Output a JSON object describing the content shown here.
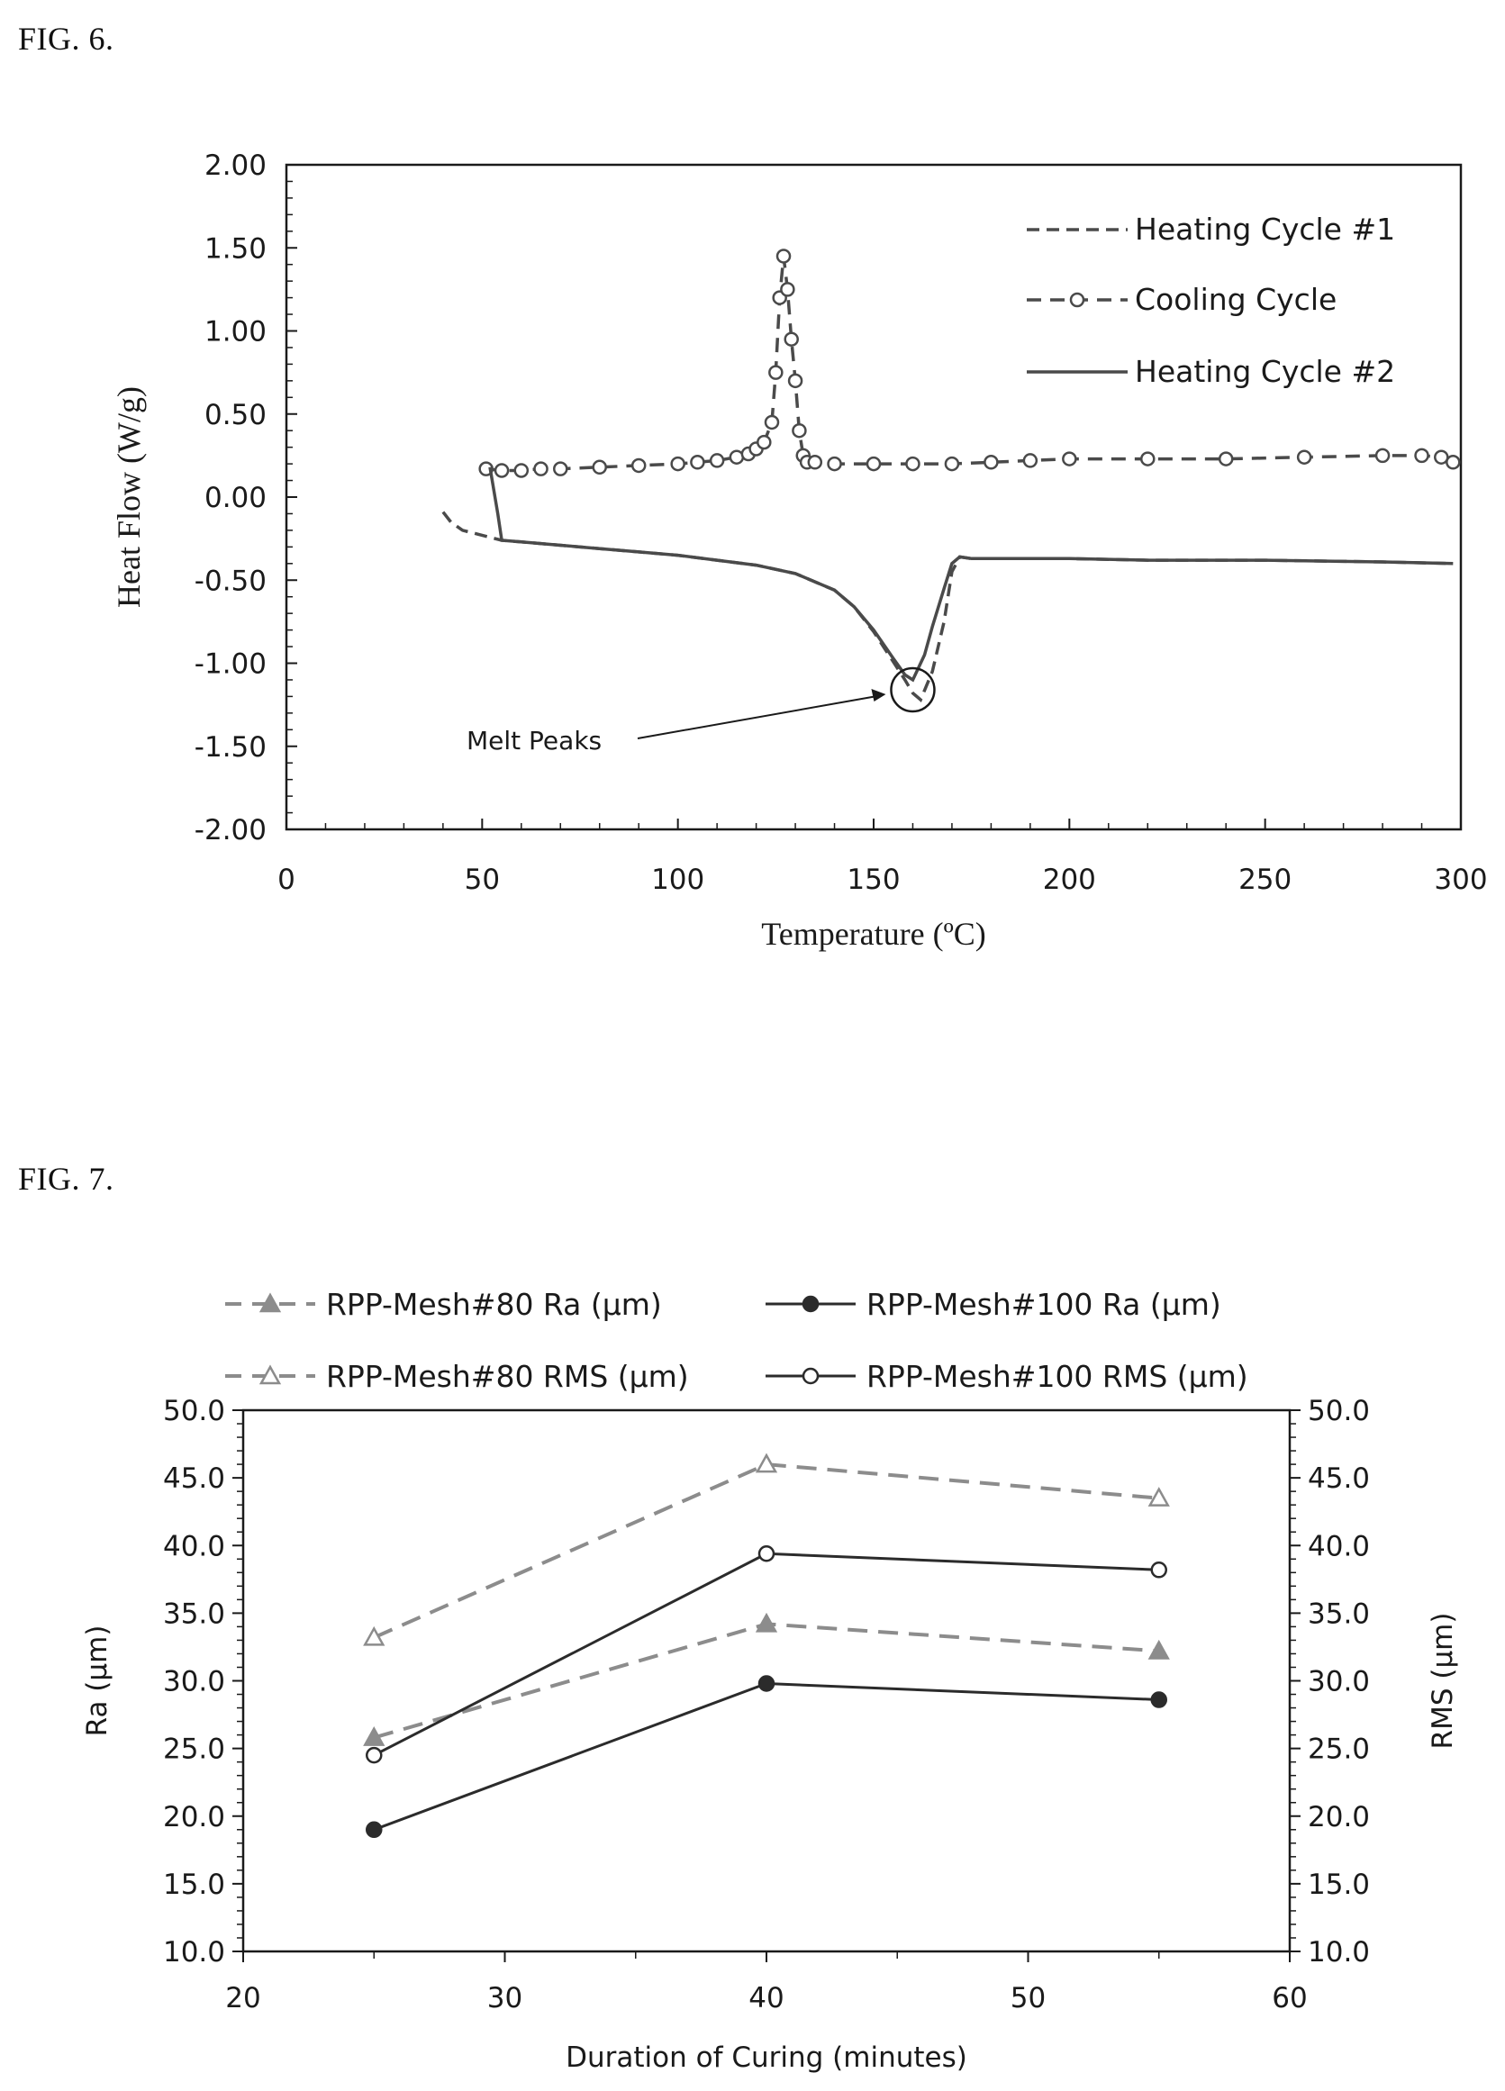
{
  "figures": {
    "fig6_label": "FIG. 6.",
    "fig7_label": "FIG. 7."
  },
  "chart_data": [
    {
      "type": "line",
      "xlabel": "Temperature (ºC)",
      "ylabel": "Heat Flow (W/g)",
      "xlim": [
        0,
        300
      ],
      "ylim": [
        -2.0,
        2.0
      ],
      "x_ticks": [
        "0",
        "50",
        "100",
        "150",
        "200",
        "250",
        "300"
      ],
      "y_ticks": [
        "2.00",
        "1.50",
        "1.00",
        "0.50",
        "0.00",
        "-0.50",
        "-1.00",
        "-1.50",
        "-2.00"
      ],
      "legend_position": "top-right",
      "series": [
        {
          "name": "Heating Cycle #1",
          "style": "dashed",
          "color": "#4a4a4a",
          "x": [
            40,
            42,
            45,
            50,
            55,
            60,
            70,
            80,
            90,
            100,
            110,
            120,
            130,
            140,
            145,
            150,
            155,
            158,
            160,
            162,
            165,
            168,
            170,
            172,
            175,
            180,
            200,
            220,
            250,
            280,
            298
          ],
          "y": [
            -0.09,
            -0.15,
            -0.2,
            -0.23,
            -0.26,
            -0.27,
            -0.29,
            -0.31,
            -0.33,
            -0.35,
            -0.38,
            -0.41,
            -0.46,
            -0.56,
            -0.66,
            -0.81,
            -0.99,
            -1.1,
            -1.18,
            -1.22,
            -1.05,
            -0.75,
            -0.45,
            -0.36,
            -0.37,
            -0.37,
            -0.37,
            -0.38,
            -0.38,
            -0.39,
            -0.4
          ]
        },
        {
          "name": "Cooling Cycle",
          "style": "dashed-circle",
          "color": "#4a4a4a",
          "x": [
            51,
            55,
            60,
            65,
            70,
            80,
            90,
            100,
            105,
            110,
            115,
            118,
            120,
            122,
            124,
            125,
            126,
            127,
            128,
            129,
            130,
            131,
            132,
            133,
            135,
            140,
            150,
            160,
            170,
            180,
            190,
            200,
            220,
            240,
            260,
            280,
            290,
            295,
            298
          ],
          "y": [
            0.17,
            0.16,
            0.16,
            0.17,
            0.17,
            0.18,
            0.19,
            0.2,
            0.21,
            0.22,
            0.24,
            0.26,
            0.29,
            0.33,
            0.45,
            0.75,
            1.2,
            1.45,
            1.25,
            0.95,
            0.7,
            0.4,
            0.25,
            0.21,
            0.21,
            0.2,
            0.2,
            0.2,
            0.2,
            0.21,
            0.22,
            0.23,
            0.23,
            0.23,
            0.24,
            0.25,
            0.25,
            0.24,
            0.21
          ]
        },
        {
          "name": "Heating Cycle #2",
          "style": "solid",
          "color": "#4a4a4a",
          "x": [
            52,
            54,
            55,
            60,
            70,
            80,
            90,
            100,
            110,
            120,
            130,
            140,
            145,
            150,
            155,
            158,
            160,
            163,
            165,
            168,
            170,
            172,
            175,
            180,
            200,
            220,
            250,
            280,
            298
          ],
          "y": [
            0.18,
            -0.1,
            -0.26,
            -0.27,
            -0.29,
            -0.31,
            -0.33,
            -0.35,
            -0.38,
            -0.41,
            -0.46,
            -0.56,
            -0.66,
            -0.8,
            -0.97,
            -1.07,
            -1.1,
            -0.95,
            -0.78,
            -0.55,
            -0.4,
            -0.36,
            -0.37,
            -0.37,
            -0.37,
            -0.38,
            -0.38,
            -0.39,
            -0.4
          ]
        }
      ],
      "annotations": [
        {
          "text": "Melt Peaks",
          "points_to": [
            160,
            -1.16
          ]
        }
      ]
    },
    {
      "type": "line",
      "xlabel": "Duration of Curing (minutes)",
      "ylabel": "Ra (μm)",
      "y2label": "RMS (μm)",
      "xlim": [
        20,
        60
      ],
      "ylim": [
        10.0,
        50.0
      ],
      "y2lim": [
        10.0,
        50.0
      ],
      "x_ticks": [
        "20",
        "30",
        "40",
        "50",
        "60"
      ],
      "y_ticks": [
        "50.0",
        "45.0",
        "40.0",
        "35.0",
        "30.0",
        "25.0",
        "20.0",
        "15.0",
        "10.0"
      ],
      "y2_ticks": [
        "50.0",
        "45.0",
        "40.0",
        "35.0",
        "30.0",
        "25.0",
        "20.0",
        "15.0",
        "10.0"
      ],
      "legend_position": "top",
      "series": [
        {
          "name": "RPP-Mesh#80 Ra (μm)",
          "style": "dashed",
          "marker": "triangle-filled",
          "color": "#8c8c8c",
          "x": [
            25,
            40,
            55
          ],
          "y": [
            25.8,
            34.2,
            32.2
          ]
        },
        {
          "name": "RPP-Mesh#100 Ra (μm)",
          "style": "solid",
          "marker": "circle-filled",
          "color": "#2b2b2b",
          "x": [
            25,
            40,
            55
          ],
          "y": [
            19.0,
            29.8,
            28.6
          ]
        },
        {
          "name": "RPP-Mesh#80 RMS (μm)",
          "style": "dashed",
          "marker": "triangle-open",
          "color": "#8c8c8c",
          "x": [
            25,
            40,
            55
          ],
          "y": [
            33.2,
            46.0,
            43.5
          ]
        },
        {
          "name": "RPP-Mesh#100 RMS (μm)",
          "style": "solid",
          "marker": "circle-open",
          "color": "#2b2b2b",
          "x": [
            25,
            40,
            55
          ],
          "y": [
            24.5,
            39.4,
            38.2
          ]
        }
      ]
    }
  ]
}
